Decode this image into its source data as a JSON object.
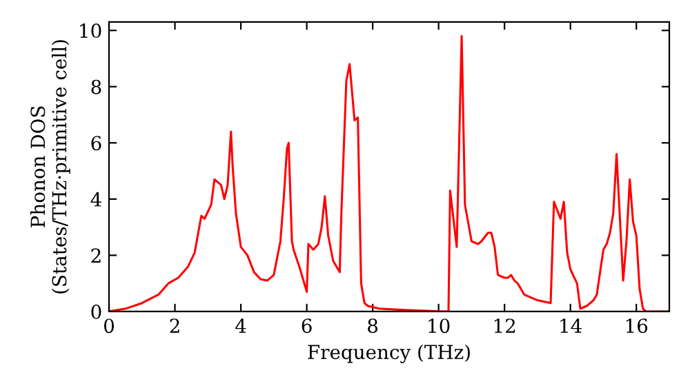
{
  "chart_data": {
    "type": "line",
    "xlabel": "Frequency (THz)",
    "ylabel": "Phonon DOS\n(States/THz·primitive cell)",
    "xlim": [
      0,
      17
    ],
    "ylim": [
      0,
      10.3
    ],
    "xticks": [
      0,
      2,
      4,
      6,
      8,
      10,
      12,
      14,
      16
    ],
    "yticks": [
      0,
      2,
      4,
      6,
      8,
      10
    ],
    "grid": false,
    "legend": false,
    "marker": "none",
    "line_style": "solid",
    "series": [
      {
        "color": "#ff0000",
        "x": [
          0,
          0.5,
          1,
          1.5,
          1.8,
          2.1,
          2.4,
          2.6,
          2.8,
          2.9,
          3.1,
          3.2,
          3.4,
          3.5,
          3.6,
          3.7,
          3.75,
          3.85,
          4.0,
          4.2,
          4.4,
          4.6,
          4.8,
          5.0,
          5.2,
          5.3,
          5.4,
          5.45,
          5.55,
          5.6,
          5.8,
          6.0,
          6.05,
          6.2,
          6.35,
          6.45,
          6.55,
          6.65,
          6.8,
          7.0,
          7.05,
          7.2,
          7.3,
          7.45,
          7.55,
          7.65,
          7.75,
          7.85,
          8.2,
          9,
          10.2,
          10.3,
          10.35,
          10.55,
          10.7,
          10.8,
          11.0,
          11.2,
          11.3,
          11.5,
          11.6,
          11.7,
          11.8,
          12.0,
          12.1,
          12.2,
          12.3,
          12.4,
          12.6,
          13.0,
          13.4,
          13.5,
          13.7,
          13.8,
          13.9,
          14.0,
          14.2,
          14.3,
          14.5,
          14.7,
          14.8,
          15.0,
          15.1,
          15.2,
          15.3,
          15.4,
          15.6,
          15.7,
          15.8,
          15.9,
          16.0,
          16.1,
          16.2,
          16.3,
          16.4,
          17
        ],
        "values": [
          0,
          0.1,
          0.3,
          0.6,
          1.0,
          1.2,
          1.6,
          2.1,
          3.4,
          3.3,
          3.8,
          4.7,
          4.5,
          4.0,
          4.5,
          6.4,
          5.2,
          3.5,
          2.3,
          2.0,
          1.4,
          1.15,
          1.1,
          1.3,
          2.5,
          4.0,
          5.8,
          6.0,
          2.5,
          2.2,
          1.5,
          0.7,
          2.4,
          2.2,
          2.4,
          3.0,
          4.1,
          2.7,
          1.8,
          1.4,
          3.5,
          8.2,
          8.8,
          6.8,
          6.9,
          1.0,
          0.3,
          0.2,
          0.1,
          0.05,
          0.0,
          0.0,
          4.3,
          2.3,
          9.8,
          3.8,
          2.5,
          2.4,
          2.5,
          2.8,
          2.8,
          2.3,
          1.3,
          1.2,
          1.2,
          1.3,
          1.1,
          1.0,
          0.6,
          0.4,
          0.3,
          3.9,
          3.3,
          3.9,
          2.1,
          1.5,
          1.0,
          0.1,
          0.2,
          0.4,
          0.6,
          2.2,
          2.4,
          2.8,
          3.5,
          5.6,
          1.1,
          2.5,
          4.7,
          3.2,
          2.7,
          0.8,
          0.1,
          0,
          0,
          0
        ]
      }
    ]
  }
}
